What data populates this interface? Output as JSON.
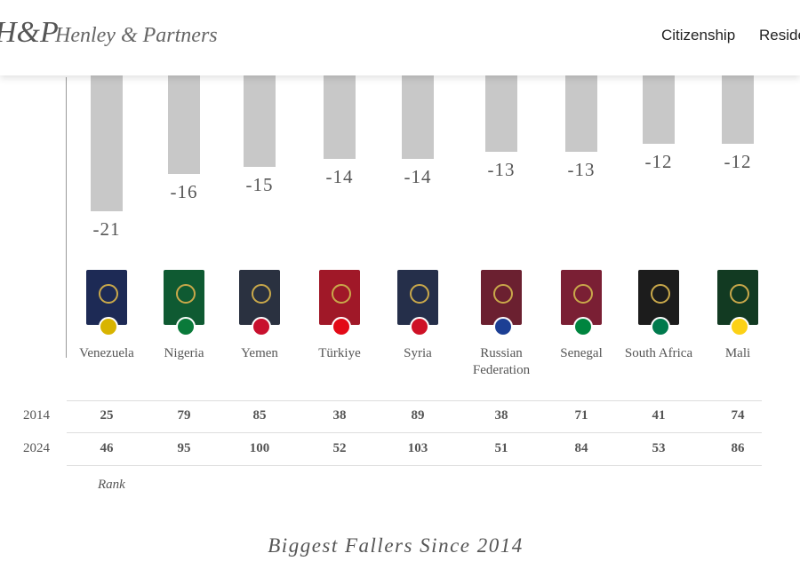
{
  "header": {
    "logo_mark": "H&P",
    "brand": "Henley & Partners",
    "nav": [
      "Citizenship",
      "Reside"
    ]
  },
  "chart_data": {
    "type": "bar",
    "categories": [
      "Venezuela",
      "Nigeria",
      "Yemen",
      "Türkiye",
      "Syria",
      "Russian Federation",
      "Senegal",
      "South Africa",
      "Mali"
    ],
    "values": [
      -21,
      -16,
      -15,
      -14,
      -14,
      -13,
      -13,
      -12,
      -12
    ],
    "color": "#c8c8c8"
  },
  "rank_table": {
    "row_labels": [
      "2014",
      "2024"
    ],
    "rows": [
      [
        "25",
        "79",
        "85",
        "38",
        "89",
        "38",
        "71",
        "41",
        "74"
      ],
      [
        "46",
        "95",
        "100",
        "52",
        "103",
        "51",
        "84",
        "53",
        "86"
      ]
    ],
    "caption": "Rank"
  },
  "footer": {
    "title": "Biggest Fallers Since 2014"
  }
}
